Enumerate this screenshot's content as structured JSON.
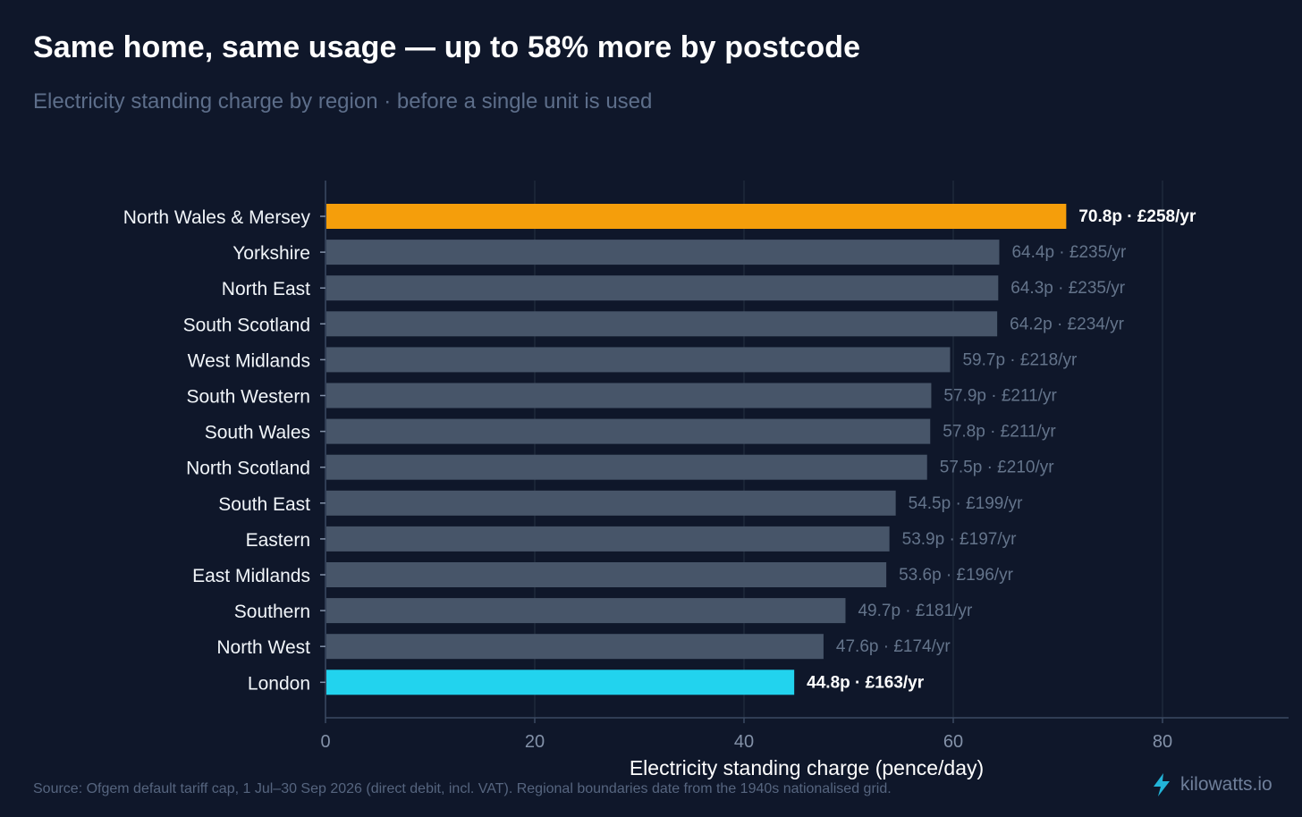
{
  "title": "Same home, same usage — up to 58% more by postcode",
  "subtitle": "Electricity standing charge by region · before a single unit is used",
  "source": "Source: Ofgem default tariff cap, 1 Jul–30 Sep 2026 (direct debit, incl. VAT). Regional boundaries date from the 1940s nationalised grid.",
  "brand": {
    "name": "kilowatts.io",
    "icon": "lightning-bolt-icon"
  },
  "colors": {
    "background": "#0f172a",
    "bar_default": "#475569",
    "bar_highest": "#f59e0b",
    "bar_lowest": "#22d3ee",
    "grid": "#1e293b",
    "label_muted": "#64748b",
    "label_highlight": "#ffffff"
  },
  "chart_data": {
    "type": "bar",
    "orientation": "horizontal",
    "xlabel": "Electricity standing charge (pence/day)",
    "ylabel": "",
    "xlim": [
      0,
      92
    ],
    "xticks": [
      0,
      20,
      40,
      60,
      80
    ],
    "grid": "vertical",
    "categories": [
      "North Wales & Mersey",
      "Yorkshire",
      "North East",
      "South Scotland",
      "West Midlands",
      "South Western",
      "South Wales",
      "North Scotland",
      "South East",
      "Eastern",
      "East Midlands",
      "Southern",
      "North West",
      "London"
    ],
    "values": [
      70.8,
      64.4,
      64.3,
      64.2,
      59.7,
      57.9,
      57.8,
      57.5,
      54.5,
      53.9,
      53.6,
      49.7,
      47.6,
      44.8
    ],
    "value_labels": [
      "70.8p · £258/yr",
      "64.4p · £235/yr",
      "64.3p · £235/yr",
      "64.2p · £234/yr",
      "59.7p · £218/yr",
      "57.9p · £211/yr",
      "57.8p · £211/yr",
      "57.5p · £210/yr",
      "54.5p · £199/yr",
      "53.9p · £197/yr",
      "53.6p · £196/yr",
      "49.7p · £181/yr",
      "47.6p · £174/yr",
      "44.8p · £163/yr"
    ],
    "highlight": {
      "highest": "North Wales & Mersey",
      "lowest": "London"
    }
  }
}
